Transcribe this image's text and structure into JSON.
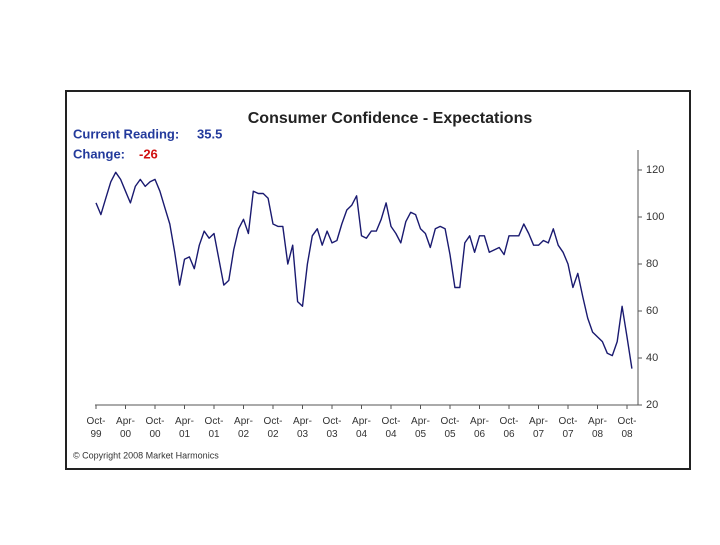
{
  "chart_data": {
    "type": "line",
    "title": "Consumer Confidence - Expectations",
    "current_reading": {
      "label": "Current Reading:",
      "value": 35.5
    },
    "change": {
      "label": "Change:",
      "value": -26
    },
    "copyright": "© Copyright 2008 Market Harmonics",
    "categories": [
      "Oct-99",
      null,
      null,
      null,
      null,
      null,
      "Apr-00",
      null,
      null,
      null,
      null,
      null,
      "Oct-00",
      null,
      null,
      null,
      null,
      null,
      "Apr-01",
      null,
      null,
      null,
      null,
      null,
      "Oct-01",
      null,
      null,
      null,
      null,
      null,
      "Apr-02",
      null,
      null,
      null,
      null,
      null,
      "Oct-02",
      null,
      null,
      null,
      null,
      null,
      "Apr-03",
      null,
      null,
      null,
      null,
      null,
      "Oct-03",
      null,
      null,
      null,
      null,
      null,
      "Apr-04",
      null,
      null,
      null,
      null,
      null,
      "Oct-04",
      null,
      null,
      null,
      null,
      null,
      "Apr-05",
      null,
      null,
      null,
      null,
      null,
      "Oct-05",
      null,
      null,
      null,
      null,
      null,
      "Apr-06",
      null,
      null,
      null,
      null,
      null,
      "Oct-06",
      null,
      null,
      null,
      null,
      null,
      "Apr-07",
      null,
      null,
      null,
      null,
      null,
      "Oct-07",
      null,
      null,
      null,
      null,
      null,
      "Apr-08",
      null,
      null,
      null,
      null,
      null,
      "Oct-08",
      null
    ],
    "values": [
      106,
      101,
      108,
      115,
      119,
      116,
      111,
      106,
      113,
      116,
      113,
      115,
      116,
      111,
      104,
      97,
      85,
      71,
      82,
      83,
      78,
      88,
      94,
      91,
      93,
      82,
      71,
      73,
      86,
      95,
      99,
      93,
      111,
      110,
      110,
      108,
      97,
      96,
      96,
      80,
      88,
      64,
      62,
      80,
      92,
      95,
      88,
      94,
      89,
      90,
      97,
      103,
      105,
      109,
      92,
      91,
      94,
      94,
      99,
      106,
      96,
      93,
      89,
      98,
      102,
      101,
      95,
      93,
      87,
      95,
      96,
      95,
      84,
      70,
      70,
      89,
      92,
      85,
      92,
      92,
      85,
      86,
      87,
      84,
      92,
      92,
      92,
      97,
      93,
      88,
      88,
      90,
      89,
      95,
      88,
      85,
      80,
      70,
      76,
      66,
      57,
      51,
      49,
      47,
      42,
      41,
      47,
      62,
      49,
      35.5
    ],
    "color": "#1a1a70",
    "ylim": [
      20,
      120
    ],
    "yticks": [
      20,
      40,
      60,
      80,
      100,
      120
    ],
    "grid": false
  }
}
